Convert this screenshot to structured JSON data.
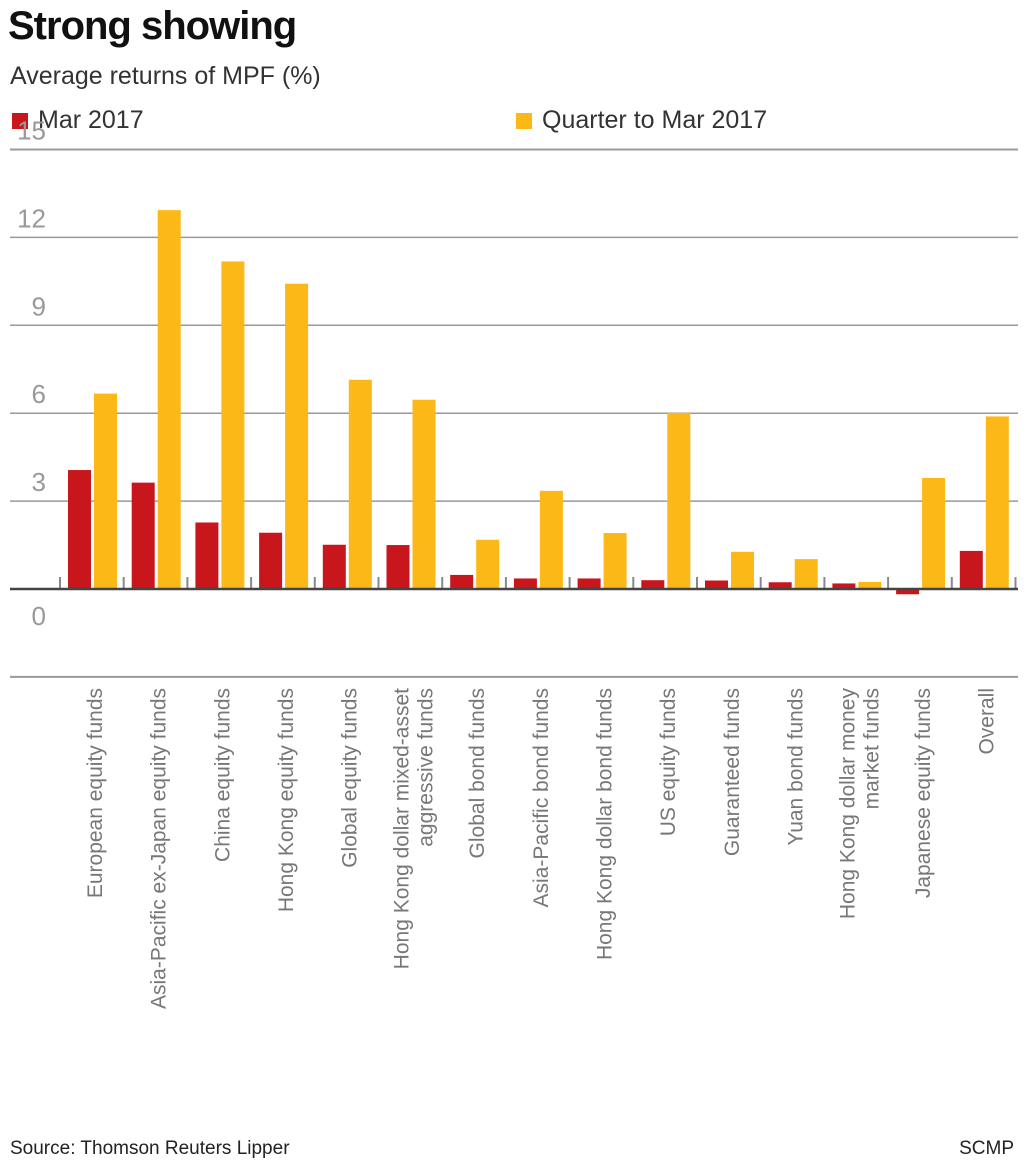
{
  "header": {
    "title": "Strong showing",
    "subtitle": "Average returns of MPF (%)"
  },
  "footer": {
    "source": "Source: Thomson Reuters Lipper",
    "credit": "SCMP"
  },
  "chart_data": {
    "type": "bar",
    "title": "Strong showing",
    "subtitle": "Average returns of MPF (%)",
    "xlabel": "",
    "ylabel": "",
    "ylim": [
      -3,
      15
    ],
    "yticks": [
      15,
      12,
      9,
      6,
      3,
      0
    ],
    "grid": true,
    "legend_placement": "top",
    "categories": [
      [
        "European equity funds"
      ],
      [
        "Asia-Pacific ex-Japan equity funds"
      ],
      [
        "China equity funds"
      ],
      [
        "Hong Kong equity funds"
      ],
      [
        "Global equity funds"
      ],
      [
        "Hong Kong dollar mixed-asset",
        "aggressive funds"
      ],
      [
        "Global bond funds"
      ],
      [
        "Asia-Pacific bond funds"
      ],
      [
        "Hong Kong dollar bond funds"
      ],
      [
        "US equity funds"
      ],
      [
        "Guaranteed funds"
      ],
      [
        "Yuan bond funds"
      ],
      [
        "Hong Kong dollar money",
        "market funds"
      ],
      [
        "Japanese equity funds"
      ],
      [
        "Overall"
      ]
    ],
    "series": [
      {
        "name": "Mar 2017",
        "color": "#c8161d",
        "values": [
          4.06,
          3.63,
          2.27,
          1.92,
          1.51,
          1.5,
          0.48,
          0.36,
          0.36,
          0.3,
          0.29,
          0.23,
          0.19,
          -0.18,
          1.3
        ]
      },
      {
        "name": "Quarter to Mar 2017",
        "color": "#fbb817",
        "values": [
          6.67,
          12.93,
          11.18,
          10.42,
          7.14,
          6.46,
          1.68,
          3.35,
          1.91,
          6.01,
          1.27,
          1.02,
          0.24,
          3.79,
          5.89
        ]
      }
    ]
  }
}
